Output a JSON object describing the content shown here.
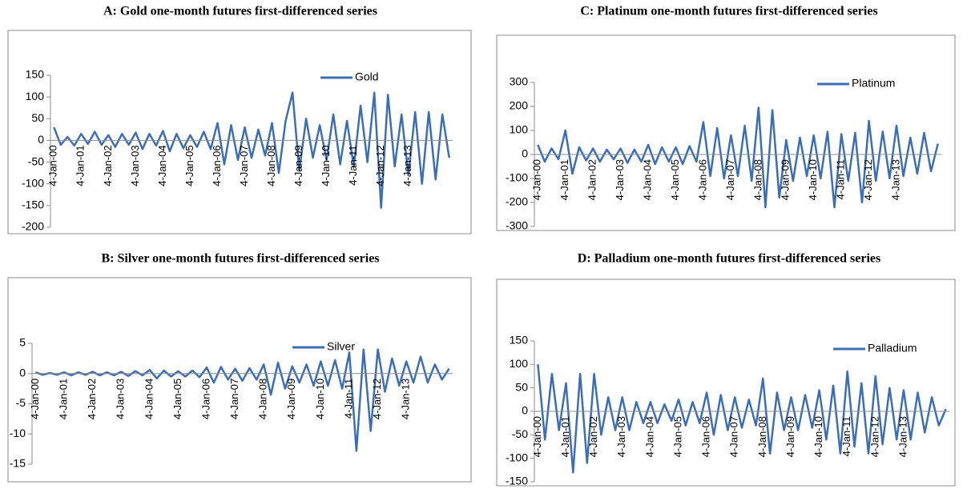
{
  "chart_data": [
    {
      "type": "line",
      "title": "A: Gold one-month futures first-differenced series",
      "categories": [
        "4-Jan-00",
        null,
        null,
        null,
        "4-Jan-01",
        null,
        null,
        null,
        "4-Jan-02",
        null,
        null,
        null,
        "4-Jan-03",
        null,
        null,
        null,
        "4-Jan-04",
        null,
        null,
        null,
        "4-Jan-05",
        null,
        null,
        null,
        "4-Jan-06",
        null,
        null,
        null,
        "4-Jan-07",
        null,
        null,
        null,
        "4-Jan-08",
        null,
        null,
        null,
        "4-Jan-09",
        null,
        null,
        null,
        "4-Jan-10",
        null,
        null,
        null,
        "4-Jan-11",
        null,
        null,
        null,
        "4-Jan-12",
        null,
        null,
        null,
        "4-Jan-13",
        null,
        null,
        null,
        null,
        null,
        null
      ],
      "series": [
        {
          "name": "Gold",
          "color": "#3d6eb4",
          "values": [
            30,
            -10,
            8,
            -12,
            15,
            -8,
            20,
            -10,
            12,
            -15,
            15,
            -10,
            18,
            -20,
            15,
            -12,
            22,
            -25,
            15,
            -18,
            12,
            -15,
            20,
            -20,
            40,
            -55,
            35,
            -45,
            30,
            -40,
            25,
            -35,
            40,
            -75,
            45,
            110,
            -70,
            50,
            -40,
            35,
            -45,
            60,
            -55,
            45,
            -60,
            80,
            -50,
            110,
            -155,
            105,
            -60,
            60,
            -80,
            65,
            -100,
            65,
            -90,
            60,
            -40
          ]
        }
      ],
      "ylim": [
        -200,
        150
      ],
      "yticks": [
        -200,
        -150,
        -100,
        -50,
        0,
        50,
        100,
        150
      ],
      "legend": "top-right"
    },
    {
      "type": "line",
      "title": "C: Platinum one-month futures first-differenced series",
      "categories": [
        "4-Jan-00",
        null,
        null,
        null,
        "4-Jan-01",
        null,
        null,
        null,
        "4-Jan-02",
        null,
        null,
        null,
        "4-Jan-03",
        null,
        null,
        null,
        "4-Jan-04",
        null,
        null,
        null,
        "4-Jan-05",
        null,
        null,
        null,
        "4-Jan-06",
        null,
        null,
        null,
        "4-Jan-07",
        null,
        null,
        null,
        "4-Jan-08",
        null,
        null,
        null,
        "4-Jan-09",
        null,
        null,
        null,
        "4-Jan-10",
        null,
        null,
        null,
        "4-Jan-11",
        null,
        null,
        null,
        "4-Jan-12",
        null,
        null,
        null,
        "4-Jan-13",
        null,
        null,
        null,
        null,
        null,
        null
      ],
      "series": [
        {
          "name": "Platinum",
          "color": "#3d6eb4",
          "values": [
            40,
            -30,
            25,
            -20,
            100,
            -80,
            30,
            -25,
            25,
            -30,
            20,
            -20,
            25,
            -35,
            20,
            -30,
            40,
            -40,
            30,
            -30,
            30,
            -40,
            35,
            -30,
            135,
            -90,
            110,
            -100,
            80,
            -90,
            120,
            -110,
            195,
            -220,
            185,
            -180,
            60,
            -110,
            70,
            -90,
            80,
            -100,
            95,
            -220,
            85,
            -110,
            90,
            -200,
            140,
            -110,
            95,
            -100,
            120,
            -90,
            70,
            -80,
            90,
            -70,
            45
          ]
        }
      ],
      "ylim": [
        -300,
        300
      ],
      "yticks": [
        -300,
        -200,
        -100,
        0,
        100,
        200,
        300
      ],
      "legend": "top-right"
    },
    {
      "type": "line",
      "title": "B: Silver one-month futures first-differenced series",
      "categories": [
        "4-Jan-00",
        null,
        null,
        null,
        "4-Jan-01",
        null,
        null,
        null,
        "4-Jan-02",
        null,
        null,
        null,
        "4-Jan-03",
        null,
        null,
        null,
        "4-Jan-04",
        null,
        null,
        null,
        "4-Jan-05",
        null,
        null,
        null,
        "4-Jan-06",
        null,
        null,
        null,
        "4-Jan-07",
        null,
        null,
        null,
        "4-Jan-08",
        null,
        null,
        null,
        "4-Jan-09",
        null,
        null,
        null,
        "4-Jan-10",
        null,
        null,
        null,
        "4-Jan-11",
        null,
        null,
        null,
        "4-Jan-12",
        null,
        null,
        null,
        "4-Jan-13",
        null,
        null,
        null,
        null,
        null,
        null
      ],
      "series": [
        {
          "name": "Silver",
          "color": "#3d6eb4",
          "values": [
            0.2,
            -0.2,
            0.1,
            -0.2,
            0.2,
            -0.3,
            0.2,
            -0.2,
            0.3,
            -0.3,
            0.2,
            -0.3,
            0.3,
            -0.4,
            0.4,
            -0.3,
            0.6,
            -0.8,
            0.5,
            -0.5,
            0.4,
            -0.5,
            0.5,
            -0.6,
            1,
            -1.5,
            1.1,
            -1,
            0.8,
            -1.2,
            0.9,
            -1,
            1.5,
            -3.5,
            1.8,
            -2.5,
            1.2,
            -1.5,
            1.5,
            -2,
            2,
            -2,
            2.2,
            -2.5,
            3.5,
            -12.8,
            4,
            -9.5,
            4,
            -3,
            2.5,
            -2,
            2,
            -1.5,
            2.8,
            -1.5,
            1.5,
            -1,
            0.8
          ]
        }
      ],
      "ylim": [
        -15,
        5
      ],
      "yticks": [
        -15,
        -10,
        -5,
        0,
        5
      ],
      "legend": "top-right"
    },
    {
      "type": "line",
      "title": "D: Palladium one-month futures first-differenced series",
      "categories": [
        "4-Jan-00",
        null,
        null,
        null,
        "4-Jan-01",
        null,
        null,
        null,
        "4-Jan-02",
        null,
        null,
        null,
        "4-Jan-03",
        null,
        null,
        null,
        "4-Jan-04",
        null,
        null,
        null,
        "4-Jan-05",
        null,
        null,
        null,
        "4-Jan-06",
        null,
        null,
        null,
        "4-Jan-07",
        null,
        null,
        null,
        "4-Jan-08",
        null,
        null,
        null,
        "4-Jan-09",
        null,
        null,
        null,
        "4-Jan-10",
        null,
        null,
        null,
        "4-Jan-11",
        null,
        null,
        null,
        "4-Jan-12",
        null,
        null,
        null,
        "4-Jan-13",
        null,
        null,
        null,
        null,
        null,
        null
      ],
      "series": [
        {
          "name": "Palladium",
          "color": "#3d6eb4",
          "values": [
            100,
            -60,
            80,
            -40,
            60,
            -130,
            80,
            -110,
            80,
            -50,
            30,
            -40,
            30,
            -40,
            20,
            -25,
            20,
            -25,
            15,
            -20,
            25,
            -30,
            20,
            -25,
            40,
            -50,
            35,
            -40,
            30,
            -35,
            25,
            -30,
            70,
            -90,
            40,
            -40,
            30,
            -40,
            35,
            -35,
            45,
            -60,
            55,
            -90,
            85,
            -75,
            60,
            -90,
            75,
            -70,
            50,
            -60,
            45,
            -60,
            40,
            -45,
            30,
            -30,
            5
          ]
        }
      ],
      "ylim": [
        -150,
        150
      ],
      "yticks": [
        -150,
        -100,
        -50,
        0,
        50,
        100,
        150
      ],
      "legend": "top-right"
    }
  ]
}
